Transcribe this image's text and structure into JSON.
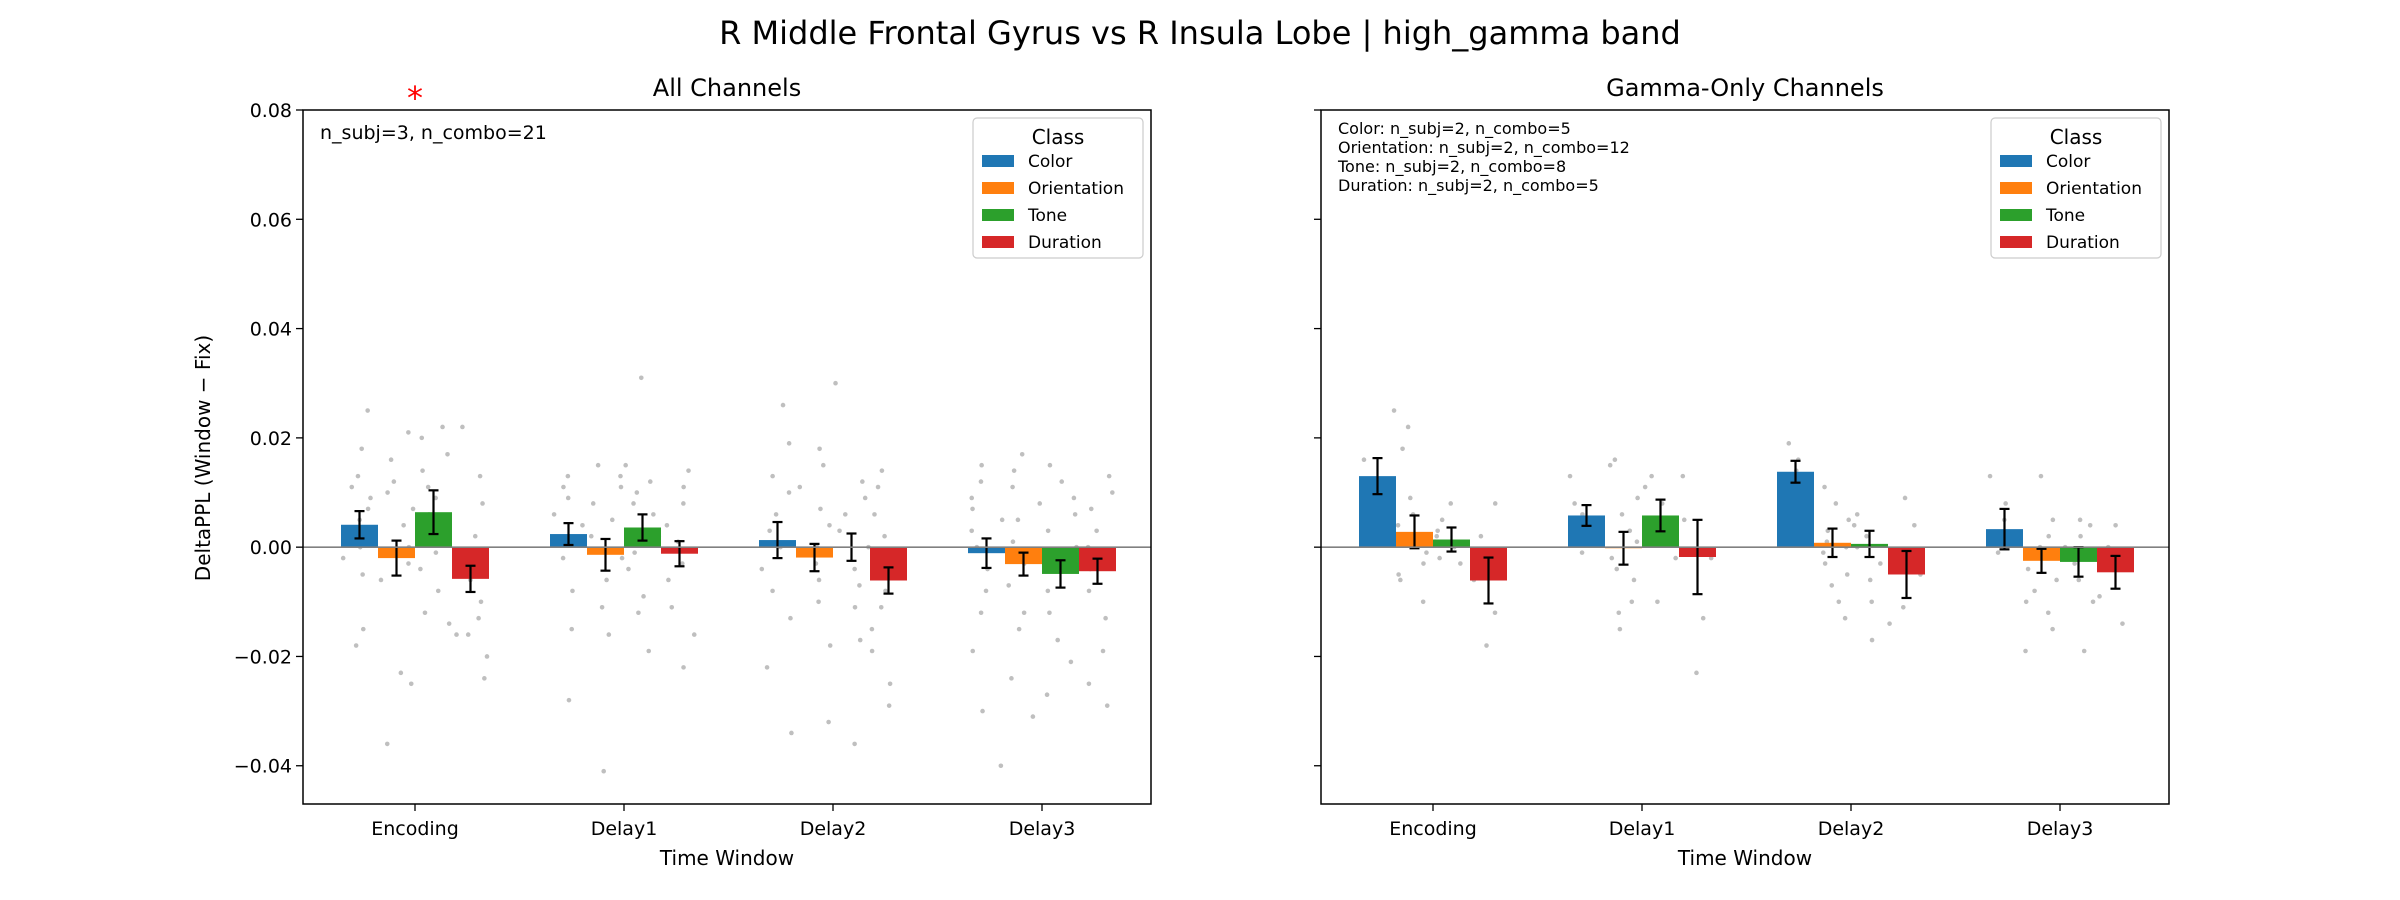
{
  "figure": {
    "suptitle": "R Middle Frontal Gyrus vs R Insula Lobe  |  high_gamma band"
  },
  "colors": {
    "Color": "#1f77b4",
    "Orientation": "#ff7f0e",
    "Tone": "#2ca02c",
    "Duration": "#d62728",
    "significance": "#ff0000",
    "points": "#a9a9a9"
  },
  "chart_data": [
    {
      "type": "bar",
      "title": "All Channels",
      "xlabel": "Time Window",
      "ylabel": "DeltaPPL (Window − Fix)",
      "ylim": [
        -0.047,
        0.08
      ],
      "yticks": [
        -0.04,
        -0.02,
        0.0,
        0.02,
        0.04,
        0.06,
        0.08
      ],
      "ytick_labels": [
        "−0.04",
        "−0.02",
        "0.00",
        "0.02",
        "0.04",
        "0.06",
        "0.08"
      ],
      "categories": [
        "Encoding",
        "Delay1",
        "Delay2",
        "Delay3"
      ],
      "legend": {
        "title": "Class",
        "placement": "upper right"
      },
      "annotation": [
        "n_subj=3, n_combo=21"
      ],
      "significance": [
        {
          "category": "Encoding",
          "label": "*"
        }
      ],
      "series": [
        {
          "name": "Color",
          "values": [
            0.0041,
            0.0024,
            0.0013,
            -0.0011
          ],
          "errors": [
            0.0025,
            0.002,
            0.0033,
            0.0027
          ]
        },
        {
          "name": "Orientation",
          "values": [
            -0.002,
            -0.0014,
            -0.0019,
            -0.0031
          ],
          "errors": [
            0.0032,
            0.0029,
            0.0025,
            0.0021
          ]
        },
        {
          "name": "Tone",
          "values": [
            0.0064,
            0.0036,
            0.0,
            -0.0049
          ],
          "errors": [
            0.004,
            0.0024,
            0.0025,
            0.0025
          ]
        },
        {
          "name": "Duration",
          "values": [
            -0.0058,
            -0.0012,
            -0.0061,
            -0.0044
          ],
          "errors": [
            0.0024,
            0.0023,
            0.0024,
            0.0023
          ]
        }
      ],
      "points": {
        "Encoding": {
          "Color": [
            0.025,
            0.018,
            0.013,
            0.011,
            0.009,
            0.007,
            0.005,
            0.003,
            0.0,
            -0.002,
            -0.005,
            -0.015,
            -0.018
          ],
          "Orientation": [
            0.021,
            0.016,
            0.012,
            0.01,
            0.007,
            0.004,
            0.0,
            -0.003,
            -0.006,
            -0.023,
            -0.025,
            -0.036
          ],
          "Tone": [
            0.022,
            0.02,
            0.017,
            0.014,
            0.011,
            0.009,
            0.006,
            0.003,
            -0.001,
            -0.004,
            -0.008,
            -0.014,
            -0.012
          ],
          "Duration": [
            0.022,
            0.013,
            0.008,
            0.002,
            -0.003,
            -0.006,
            -0.01,
            -0.013,
            -0.016,
            -0.016,
            -0.02,
            -0.024
          ]
        },
        "Delay1": {
          "Color": [
            0.013,
            0.011,
            0.009,
            0.006,
            0.004,
            0.001,
            -0.002,
            -0.008,
            -0.015,
            -0.028
          ],
          "Orientation": [
            0.015,
            0.013,
            0.011,
            0.008,
            0.005,
            0.002,
            -0.002,
            -0.006,
            -0.011,
            -0.016,
            -0.041
          ],
          "Tone": [
            0.031,
            0.015,
            0.012,
            0.01,
            0.008,
            0.006,
            0.002,
            -0.001,
            -0.004,
            -0.009,
            -0.012,
            -0.019
          ],
          "Duration": [
            0.014,
            0.011,
            0.008,
            0.004,
            0.001,
            -0.003,
            -0.006,
            -0.011,
            -0.016,
            -0.022
          ]
        },
        "Delay2": {
          "Color": [
            0.026,
            0.019,
            0.013,
            0.01,
            0.006,
            0.003,
            0.0,
            -0.004,
            -0.008,
            -0.013,
            -0.022,
            -0.034
          ],
          "Orientation": [
            0.018,
            0.015,
            0.011,
            0.007,
            0.004,
            0.0,
            -0.003,
            -0.006,
            -0.01,
            -0.018,
            -0.032
          ],
          "Tone": [
            0.03,
            0.012,
            0.009,
            0.006,
            0.003,
            0.0,
            -0.004,
            -0.007,
            -0.011,
            -0.017,
            -0.036
          ],
          "Duration": [
            0.014,
            0.011,
            0.006,
            0.002,
            -0.003,
            -0.008,
            -0.011,
            -0.015,
            -0.019,
            -0.025,
            -0.029
          ]
        },
        "Delay3": {
          "Color": [
            0.015,
            0.012,
            0.009,
            0.007,
            0.005,
            0.003,
            0.0,
            -0.004,
            -0.008,
            -0.012,
            -0.019,
            -0.03,
            -0.04
          ],
          "Orientation": [
            0.017,
            0.014,
            0.011,
            0.008,
            0.005,
            0.001,
            -0.003,
            -0.007,
            -0.012,
            -0.015,
            -0.024,
            -0.031
          ],
          "Tone": [
            0.015,
            0.012,
            0.009,
            0.006,
            0.003,
            0.0,
            -0.004,
            -0.008,
            -0.012,
            -0.017,
            -0.021,
            -0.027
          ],
          "Duration": [
            0.013,
            0.01,
            0.007,
            0.003,
            0.0,
            -0.004,
            -0.008,
            -0.013,
            -0.019,
            -0.025,
            -0.029
          ]
        }
      }
    },
    {
      "type": "bar",
      "title": "Gamma-Only Channels",
      "xlabel": "Time Window",
      "ylabel": "",
      "ylim": [
        -0.047,
        0.08
      ],
      "yticks": [
        -0.04,
        -0.02,
        0.0,
        0.02,
        0.04,
        0.06,
        0.08
      ],
      "ytick_labels": [
        "",
        "",
        "",
        "",
        "",
        "",
        ""
      ],
      "categories": [
        "Encoding",
        "Delay1",
        "Delay2",
        "Delay3"
      ],
      "legend": {
        "title": "Class",
        "placement": "upper right"
      },
      "annotation": [
        "Color: n_subj=2, n_combo=5",
        "Orientation: n_subj=2, n_combo=12",
        "Tone: n_subj=2, n_combo=8",
        "Duration: n_subj=2, n_combo=5"
      ],
      "significance": [],
      "series": [
        {
          "name": "Color",
          "values": [
            0.013,
            0.0058,
            0.0138,
            0.0033
          ],
          "errors": [
            0.0033,
            0.0019,
            0.002,
            0.0037
          ]
        },
        {
          "name": "Orientation",
          "values": [
            0.0028,
            -0.0002,
            0.0008,
            -0.0025
          ],
          "errors": [
            0.003,
            0.003,
            0.0026,
            0.0022
          ]
        },
        {
          "name": "Tone",
          "values": [
            0.0014,
            0.0058,
            0.0006,
            -0.0027
          ],
          "errors": [
            0.0022,
            0.0029,
            0.0024,
            0.0027
          ]
        },
        {
          "name": "Duration",
          "values": [
            -0.0061,
            -0.0018,
            -0.005,
            -0.0046
          ],
          "errors": [
            0.0042,
            0.0068,
            0.0043,
            0.003
          ]
        }
      ],
      "points": {
        "Encoding": {
          "Color": [
            0.025,
            0.016,
            0.012,
            0.01,
            0.007
          ],
          "Orientation": [
            0.022,
            0.018,
            0.009,
            0.006,
            0.004,
            0.002,
            0.001,
            -0.001,
            -0.003,
            -0.005,
            -0.006,
            -0.01
          ],
          "Tone": [
            0.008,
            0.005,
            0.003,
            0.002,
            0.001,
            0.0,
            -0.002,
            -0.003
          ],
          "Duration": [
            0.008,
            0.002,
            -0.006,
            -0.012,
            -0.018
          ]
        },
        "Delay1": {
          "Color": [
            0.013,
            0.008,
            0.006,
            0.004,
            -0.001
          ],
          "Orientation": [
            0.016,
            0.015,
            0.009,
            0.006,
            0.003,
            0.001,
            -0.002,
            -0.004,
            -0.006,
            -0.01,
            -0.012,
            -0.015
          ],
          "Tone": [
            0.013,
            0.011,
            0.008,
            0.005,
            0.003,
            0.001,
            -0.002,
            -0.01
          ],
          "Duration": [
            0.013,
            0.005,
            -0.002,
            -0.013,
            -0.023
          ]
        },
        "Delay2": {
          "Color": [
            0.019,
            0.016,
            0.014,
            0.012,
            0.01
          ],
          "Orientation": [
            0.011,
            0.008,
            0.005,
            0.003,
            0.001,
            0.0,
            -0.001,
            -0.003,
            -0.005,
            -0.007,
            -0.01,
            -0.013
          ],
          "Tone": [
            0.006,
            0.004,
            0.002,
            0.0,
            -0.003,
            -0.006,
            -0.01,
            -0.017
          ],
          "Duration": [
            0.009,
            0.004,
            -0.005,
            -0.011,
            -0.014
          ]
        },
        "Delay3": {
          "Color": [
            0.013,
            0.008,
            0.005,
            0.002,
            -0.001
          ],
          "Orientation": [
            0.013,
            0.005,
            0.002,
            0.0,
            -0.002,
            -0.004,
            -0.006,
            -0.008,
            -0.01,
            -0.012,
            -0.015,
            -0.019
          ],
          "Tone": [
            0.005,
            0.004,
            0.002,
            0.0,
            -0.003,
            -0.006,
            -0.01,
            -0.019
          ],
          "Duration": [
            0.004,
            0.0,
            -0.004,
            -0.009,
            -0.014
          ]
        }
      }
    }
  ]
}
